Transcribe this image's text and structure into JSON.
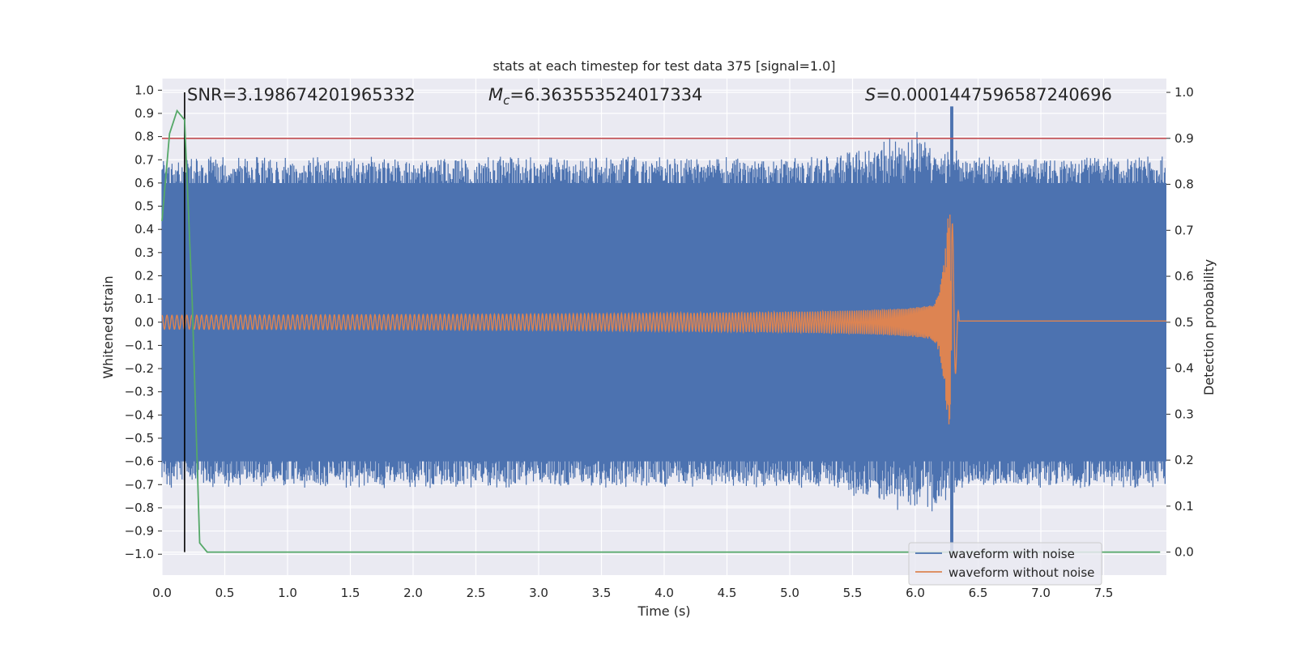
{
  "chart_data": {
    "type": "line",
    "title": "stats at each timestep for test data 375 [signal=1.0]",
    "xlabel": "Time (s)",
    "ylabel": "Whitened strain",
    "y2label": "Detection probability",
    "xlim": [
      0.0,
      8.0
    ],
    "ylim": [
      -1.09,
      1.05
    ],
    "y2lim": [
      -0.05,
      1.03
    ],
    "xticks": [
      "0.0",
      "0.5",
      "1.0",
      "1.5",
      "2.0",
      "2.5",
      "3.0",
      "3.5",
      "4.0",
      "4.5",
      "5.0",
      "5.5",
      "6.0",
      "6.5",
      "7.0",
      "7.5"
    ],
    "yticks": [
      "1.0",
      "0.9",
      "0.8",
      "0.7",
      "0.6",
      "0.5",
      "0.4",
      "0.3",
      "0.2",
      "0.1",
      "0.0",
      "−0.1",
      "−0.2",
      "−0.3",
      "−0.4",
      "−0.5",
      "−0.6",
      "−0.7",
      "−0.8",
      "−0.9",
      "−1.0"
    ],
    "y2ticks": [
      "1.0",
      "0.9",
      "0.8",
      "0.7",
      "0.6",
      "0.5",
      "0.4",
      "0.3",
      "0.2",
      "0.1",
      "0.0"
    ],
    "grid": true,
    "legend_position": "lower-right",
    "annotations": {
      "snr": "SNR=3.198674201965332",
      "mc_symbol": "M",
      "mc_sub": "c",
      "mc_value": "=6.363553524017334",
      "s_symbol": "S",
      "s_value": "=0.0001447596587240696"
    },
    "threshold": {
      "axis": "right",
      "value": 0.9
    },
    "marker_time": 0.18,
    "series": [
      {
        "name": "waveform with noise",
        "axis": "left",
        "color": "#4c72b0",
        "description_values": {
          "typical_max": 0.68,
          "typical_min": -0.68,
          "peak_time": 6.29,
          "peak_max": 0.93,
          "peak_min": -1.0
        }
      },
      {
        "name": "waveform without noise",
        "axis": "left",
        "color": "#dd8452",
        "chirp": {
          "start_amplitude": 0.03,
          "merger_time": 6.29,
          "peak_max": 0.47,
          "peak_min": -0.47,
          "post_merger_value": 0.005
        }
      },
      {
        "axis": "right",
        "color": "#55a868",
        "x": [
          0.0,
          0.06,
          0.12,
          0.18,
          0.24,
          0.3,
          0.36,
          0.42,
          7.95
        ],
        "values": [
          0.72,
          0.91,
          0.96,
          0.94,
          0.55,
          0.02,
          0.0,
          0.0,
          0.0
        ]
      }
    ],
    "colors": {
      "threshold": "#c44e52",
      "marker": "#000000",
      "background": "#eaeaf2",
      "grid": "#ffffff"
    }
  }
}
